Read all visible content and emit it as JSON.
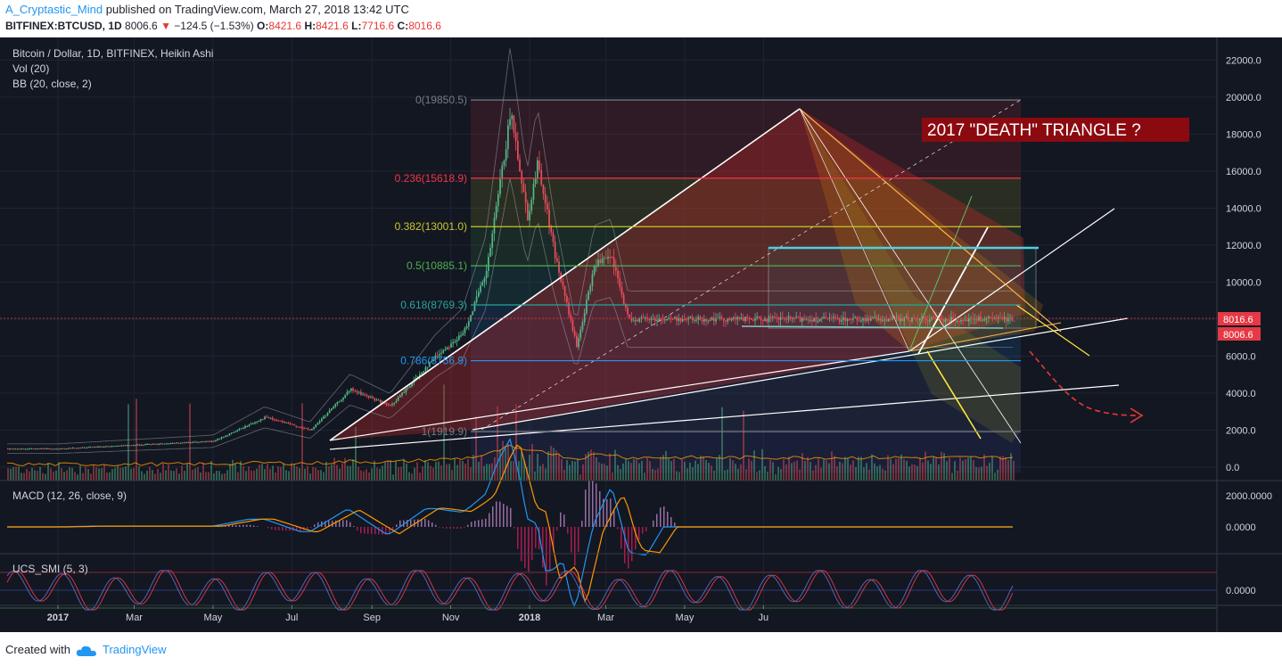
{
  "header": {
    "author": "A_Cryptastic_Mind",
    "published_text": "published on TradingView.com, March 27, 2018 13:42 UTC",
    "symbol": "BITFINEX:BTCUSD, 1D",
    "price": "8006.6",
    "change": "−124.5 (−1.53%)",
    "o_label": "O:",
    "o_value": "8421.6",
    "h_label": "H:",
    "h_value": "8421.6",
    "l_label": "L:",
    "l_value": "7716.6",
    "c_label": "C:",
    "c_value": "8016.6"
  },
  "legend": {
    "title": "Bitcoin / Dollar, 1D, BITFINEX, Heikin Ashi",
    "vol": "Vol (20)",
    "bb": "BB (20, close, 2)",
    "macd": "MACD (12, 26, close, 9)",
    "smi": "UCS_SMI (5, 3)"
  },
  "annotation": "2017 \"DEATH\" TRIANGLE ?",
  "price_tags": {
    "top": "8016.6",
    "bottom": "8006.6"
  },
  "footer": {
    "created_with": "Created with",
    "brand": "TradingView"
  },
  "colors": {
    "background": "#131722",
    "up": "#53b987",
    "down": "#eb4d5c",
    "annotation_bg": "#8b0a10",
    "trend": "#ffffff",
    "fib_top": "#787b86",
    "fib_236": "#f23645",
    "fib_382": "#c8c82a",
    "fib_50": "#4caf50",
    "fib_618": "#26a69a",
    "fib_786": "#2196f3",
    "macd": "#2196f3",
    "signal": "#ff9800",
    "forecast": "#e53935"
  },
  "chart_data": {
    "type": "candlestick",
    "title": "Bitcoin / Dollar, 1D, BITFINEX, Heikin Ashi",
    "price_axis": {
      "ticks": [
        "0.0",
        "2000.0",
        "4000.0",
        "6000.0",
        "8000.0",
        "10000.0",
        "12000.0",
        "14000.0",
        "16000.0",
        "18000.0",
        "20000.0",
        "22000.0"
      ],
      "range": [
        -500,
        22500
      ]
    },
    "time_axis": {
      "ticks": [
        "2017",
        "Mar",
        "May",
        "Jul",
        "Sep",
        "Nov",
        "2018",
        "Mar",
        "May",
        "Ju"
      ],
      "bold_ticks": [
        "2017",
        "2018"
      ]
    },
    "approx_closes": [
      {
        "date": "2017-01-01",
        "price": 1000
      },
      {
        "date": "2017-03-01",
        "price": 1200
      },
      {
        "date": "2017-05-01",
        "price": 1400
      },
      {
        "date": "2017-06-10",
        "price": 2700
      },
      {
        "date": "2017-07-15",
        "price": 2000
      },
      {
        "date": "2017-08-15",
        "price": 4200
      },
      {
        "date": "2017-09-15",
        "price": 3300
      },
      {
        "date": "2017-10-20",
        "price": 6000
      },
      {
        "date": "2017-11-10",
        "price": 7200
      },
      {
        "date": "2017-11-28",
        "price": 10500
      },
      {
        "date": "2017-12-17",
        "price": 19200
      },
      {
        "date": "2017-12-30",
        "price": 13500
      },
      {
        "date": "2018-01-07",
        "price": 16500
      },
      {
        "date": "2018-01-20",
        "price": 11500
      },
      {
        "date": "2018-02-06",
        "price": 6500
      },
      {
        "date": "2018-02-20",
        "price": 11000
      },
      {
        "date": "2018-03-05",
        "price": 11300
      },
      {
        "date": "2018-03-18",
        "price": 8000
      },
      {
        "date": "2018-03-27",
        "price": 8006.6
      }
    ],
    "fib_levels": [
      {
        "label": "0(19850.5)",
        "value": 19850.5
      },
      {
        "label": "0.236(15618.9)",
        "value": 15618.9
      },
      {
        "label": "0.382(13001.0)",
        "value": 13001.0
      },
      {
        "label": "0.5(10885.1)",
        "value": 10885.1
      },
      {
        "label": "0.618(8769.3)",
        "value": 8769.3
      },
      {
        "label": "0.786(5756.9)",
        "value": 5756.9
      },
      {
        "label": "1(1919.9)",
        "value": 1919.9
      }
    ],
    "macd": {
      "ticks": [
        "2000.0000",
        "0.0000"
      ],
      "range": [
        -800,
        2800
      ]
    },
    "smi": {
      "ticks": [
        "0.0000"
      ],
      "range": [
        -1.2,
        1.2
      ]
    }
  }
}
